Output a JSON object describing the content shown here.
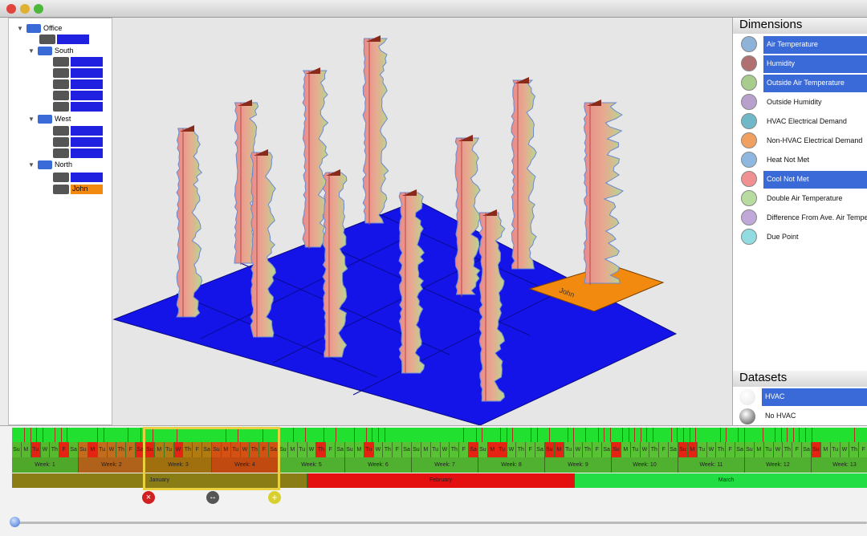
{
  "tree": {
    "root": "Office",
    "groups": [
      "South",
      "West",
      "North"
    ],
    "selected_leaf": "John"
  },
  "map": {
    "tile_label": "John"
  },
  "dimensions": {
    "title": "Dimensions",
    "items": [
      {
        "label": "Air Temperature",
        "color": "#8fb2d9",
        "selected": true
      },
      {
        "label": "Humidity",
        "color": "#b07070",
        "selected": true
      },
      {
        "label": "Outside Air Temperature",
        "color": "#a8cc8c",
        "selected": true
      },
      {
        "label": "Outside Humidity",
        "color": "#b8a0cc",
        "selected": false
      },
      {
        "label": "HVAC Electrical Demand",
        "color": "#6fb8c8",
        "selected": false
      },
      {
        "label": "Non-HVAC Electrical Demand",
        "color": "#f0a060",
        "selected": false
      },
      {
        "label": "Heat Not Met",
        "color": "#8fb8e0",
        "selected": false
      },
      {
        "label": "Cool Not Met",
        "color": "#f09090",
        "selected": true
      },
      {
        "label": "Double Air Temperature",
        "color": "#b8dca0",
        "selected": false
      },
      {
        "label": "Difference From Ave. Air Temperature",
        "color": "#c0a8d8",
        "selected": false
      },
      {
        "label": "Due Point",
        "color": "#90dce0",
        "selected": false
      }
    ]
  },
  "datasets": {
    "title": "Datasets",
    "items": [
      {
        "label": "HVAC",
        "color": "#e6e6e6",
        "selected": true
      },
      {
        "label": "No HVAC",
        "color": "#444444",
        "selected": false
      }
    ]
  },
  "timeline": {
    "weekdays": [
      "Su",
      "M",
      "Tu",
      "W",
      "Th",
      "F",
      "Sa"
    ],
    "weeks": [
      {
        "label": "Week: 1",
        "color": "#4fa82a"
      },
      {
        "label": "Week: 2",
        "color": "#b0621a"
      },
      {
        "label": "Week: 3",
        "color": "#a0700f"
      },
      {
        "label": "Week: 4",
        "color": "#c04a10"
      },
      {
        "label": "Week: 5",
        "color": "#50b030"
      },
      {
        "label": "Week: 6",
        "color": "#50b030"
      },
      {
        "label": "Week: 7",
        "color": "#50b030"
      },
      {
        "label": "Week: 8",
        "color": "#50b030"
      },
      {
        "label": "Week: 9",
        "color": "#50b030"
      },
      {
        "label": "Week: 10",
        "color": "#50b030"
      },
      {
        "label": "Week: 11",
        "color": "#50b030"
      },
      {
        "label": "Week: 12",
        "color": "#50b030"
      },
      {
        "label": "Week: 13",
        "color": "#50b030"
      }
    ],
    "months": [
      {
        "label": "January",
        "color": "#8b7d16"
      },
      {
        "label": "February",
        "color": "#e41010"
      },
      {
        "label": "March",
        "color": "#22dd44"
      }
    ]
  }
}
